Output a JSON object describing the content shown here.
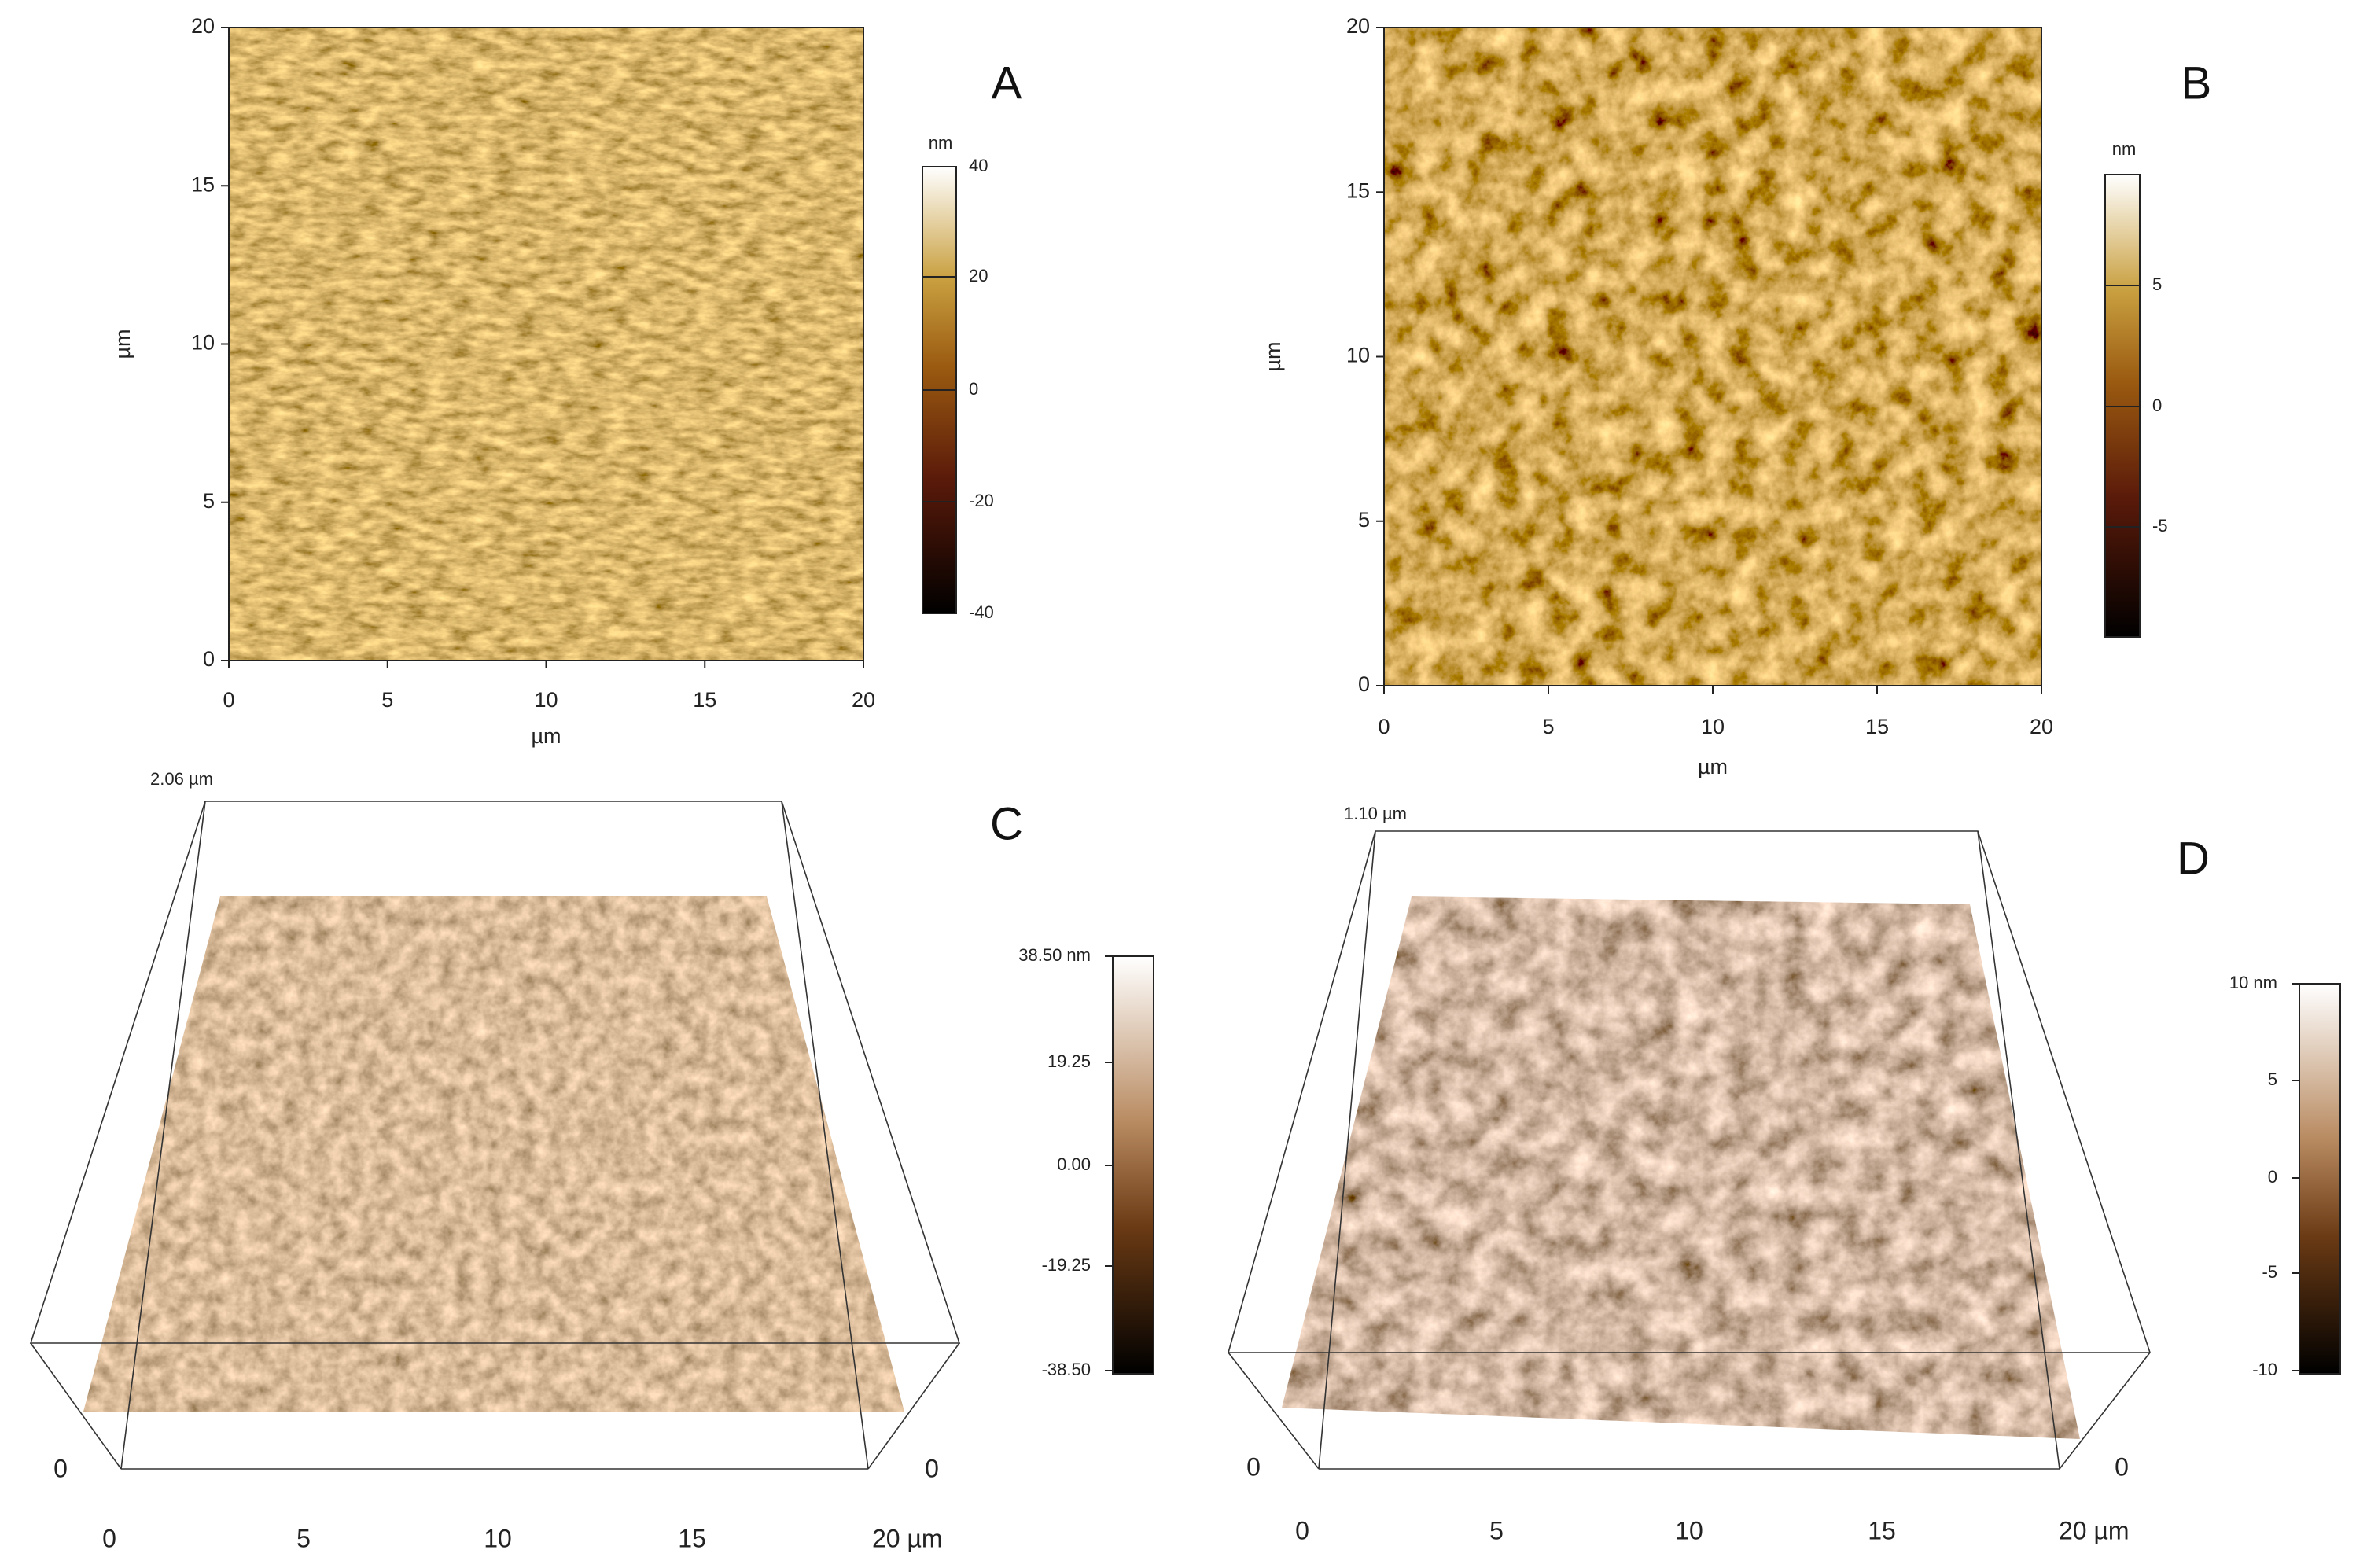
{
  "panels": [
    {
      "label": "A",
      "x_ticks": [
        "0",
        "5",
        "10",
        "15",
        "20"
      ],
      "y_ticks": [
        "0",
        "5",
        "10",
        "15",
        "20"
      ],
      "x_axis_label": "µm",
      "y_axis_label": "µm",
      "colorbar_unit": "nm",
      "colorbar_ticks": [
        "40",
        "20",
        "0",
        "-20",
        "-40"
      ]
    },
    {
      "label": "B",
      "x_ticks": [
        "0",
        "5",
        "10",
        "15",
        "20"
      ],
      "y_ticks": [
        "0",
        "5",
        "10",
        "15",
        "20"
      ],
      "x_axis_label": "µm",
      "y_axis_label": "µm",
      "colorbar_unit": "nm",
      "colorbar_ticks": [
        "5",
        "0",
        "-5"
      ]
    },
    {
      "label": "C",
      "z_max": "2.06 µm",
      "x_ticks": [
        "0",
        "5",
        "10",
        "15",
        "20 µm"
      ],
      "corner_labels": [
        "0",
        "0"
      ],
      "colorbar_ticks": [
        "38.50 nm",
        "19.25",
        "0.00",
        "-19.25",
        "-38.50"
      ]
    },
    {
      "label": "D",
      "z_max": "1.10 µm",
      "x_ticks": [
        "0",
        "5",
        "10",
        "15",
        "20 µm"
      ],
      "corner_labels": [
        "0",
        "0"
      ],
      "colorbar_ticks": [
        "10 nm",
        "5",
        "0",
        "-5",
        "-10"
      ]
    }
  ]
}
